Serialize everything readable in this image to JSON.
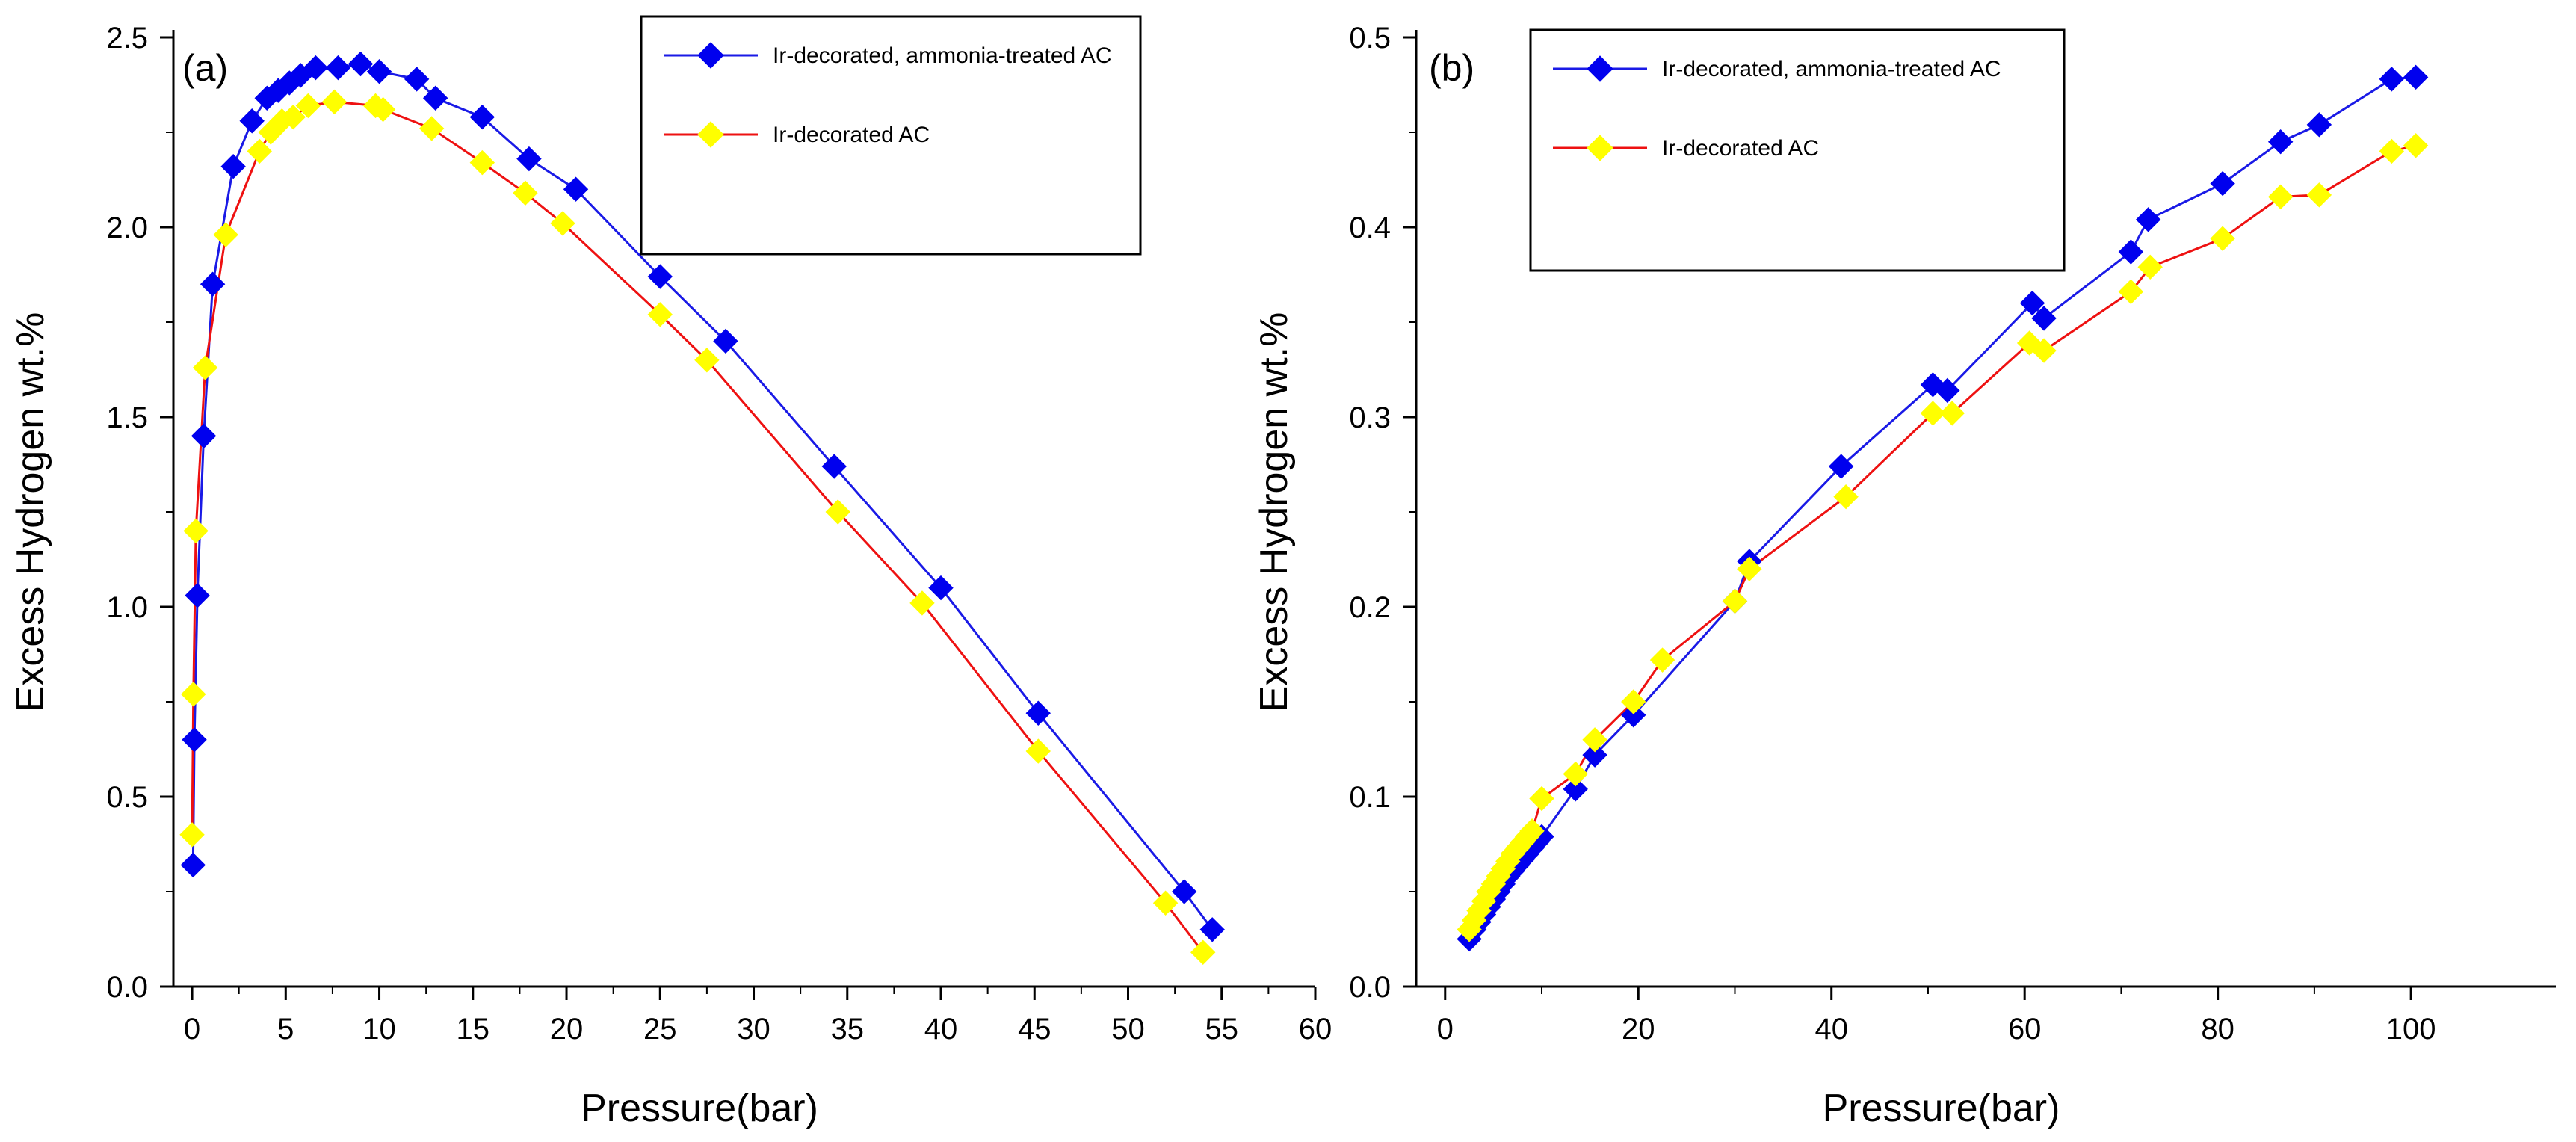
{
  "chart_data": [
    {
      "type": "line",
      "panel_label": "(a)",
      "xlabel": "Pressure(bar)",
      "ylabel": "Excess Hydrogen wt.%",
      "xlim": [
        -1,
        60
      ],
      "ylim": [
        0,
        2.5
      ],
      "xticks": [
        0,
        5,
        10,
        15,
        20,
        25,
        30,
        35,
        40,
        45,
        50,
        55,
        60
      ],
      "yticks": [
        0.0,
        0.5,
        1.0,
        1.5,
        2.0,
        2.5
      ],
      "ytick_labels": [
        "0.0",
        "0.5",
        "1.0",
        "1.5",
        "2.0",
        "2.5"
      ],
      "legend": {
        "location": "top-right"
      },
      "series": [
        {
          "name": "Ir-decorated, ammonia-treated AC",
          "line_color": "#1a1ae6",
          "marker_color": "#0000ee",
          "x": [
            0.05,
            0.12,
            0.28,
            0.62,
            1.1,
            2.2,
            3.2,
            4.0,
            4.6,
            5.2,
            5.8,
            6.6,
            7.8,
            9.0,
            10.0,
            12.0,
            13.0,
            15.5,
            18.0,
            20.5,
            25.0,
            28.5,
            34.3,
            40.0,
            45.2,
            53.0,
            54.5
          ],
          "y": [
            0.32,
            0.65,
            1.03,
            1.45,
            1.85,
            2.16,
            2.28,
            2.34,
            2.36,
            2.38,
            2.4,
            2.42,
            2.42,
            2.43,
            2.41,
            2.39,
            2.34,
            2.29,
            2.18,
            2.1,
            1.87,
            1.7,
            1.37,
            1.05,
            0.72,
            0.25,
            0.15
          ]
        },
        {
          "name": "Ir-decorated AC",
          "line_color": "#ee1111",
          "marker_color": "#ffff00",
          "x": [
            0.0,
            0.07,
            0.2,
            0.7,
            1.8,
            3.6,
            4.2,
            4.8,
            5.4,
            6.2,
            7.6,
            9.8,
            10.2,
            12.8,
            15.5,
            17.8,
            19.8,
            25.0,
            27.5,
            34.5,
            39.0,
            45.2,
            52.0,
            54.0
          ],
          "y": [
            0.4,
            0.77,
            1.2,
            1.63,
            1.98,
            2.2,
            2.25,
            2.28,
            2.29,
            2.32,
            2.33,
            2.32,
            2.31,
            2.26,
            2.17,
            2.09,
            2.01,
            1.77,
            1.65,
            1.25,
            1.01,
            0.62,
            0.22,
            0.09
          ]
        }
      ]
    },
    {
      "type": "line",
      "panel_label": "(b)",
      "xlabel": "Pressure(bar)",
      "ylabel": "Excess Hydrogen wt.%",
      "xlim": [
        -3,
        115
      ],
      "ylim": [
        0,
        0.5
      ],
      "xticks": [
        0,
        20,
        40,
        60,
        80,
        100
      ],
      "yticks": [
        0.0,
        0.1,
        0.2,
        0.3,
        0.4,
        0.5
      ],
      "ytick_labels": [
        "0.0",
        "0.1",
        "0.2",
        "0.3",
        "0.4",
        "0.5"
      ],
      "legend": {
        "location": "top-center"
      },
      "series": [
        {
          "name": "Ir-decorated, ammonia-treated AC",
          "line_color": "#1a1ae6",
          "marker_color": "#0000ee",
          "x": [
            2.5,
            3.0,
            3.5,
            4.0,
            4.5,
            5.0,
            5.5,
            6.0,
            6.5,
            7.0,
            7.5,
            8.0,
            8.5,
            9.0,
            9.5,
            10.0,
            13.5,
            15.5,
            19.5,
            30.0,
            31.5,
            41.0,
            50.5,
            52.0,
            60.8,
            62.0,
            71.0,
            72.8,
            80.5,
            86.5,
            90.5,
            98.0,
            100.5
          ],
          "y": [
            0.025,
            0.03,
            0.034,
            0.038,
            0.042,
            0.046,
            0.05,
            0.054,
            0.058,
            0.061,
            0.064,
            0.067,
            0.07,
            0.073,
            0.076,
            0.079,
            0.104,
            0.122,
            0.143,
            0.203,
            0.224,
            0.274,
            0.317,
            0.314,
            0.36,
            0.352,
            0.387,
            0.404,
            0.423,
            0.445,
            0.454,
            0.478,
            0.479
          ]
        },
        {
          "name": "Ir-decorated AC",
          "line_color": "#ee1111",
          "marker_color": "#ffff00",
          "x": [
            2.5,
            3.0,
            3.5,
            4.0,
            4.5,
            5.0,
            5.5,
            6.0,
            6.5,
            7.0,
            7.5,
            8.0,
            8.5,
            9.0,
            10.0,
            13.5,
            15.5,
            19.5,
            22.5,
            30.0,
            31.5,
            41.5,
            50.5,
            52.5,
            60.5,
            62.0,
            71.0,
            73.0,
            80.5,
            86.5,
            90.5,
            98.0,
            100.5
          ],
          "y": [
            0.03,
            0.035,
            0.04,
            0.045,
            0.05,
            0.054,
            0.058,
            0.062,
            0.066,
            0.07,
            0.073,
            0.076,
            0.079,
            0.082,
            0.099,
            0.112,
            0.13,
            0.15,
            0.172,
            0.203,
            0.22,
            0.258,
            0.302,
            0.302,
            0.339,
            0.335,
            0.366,
            0.379,
            0.394,
            0.416,
            0.417,
            0.44,
            0.443
          ]
        }
      ]
    }
  ]
}
